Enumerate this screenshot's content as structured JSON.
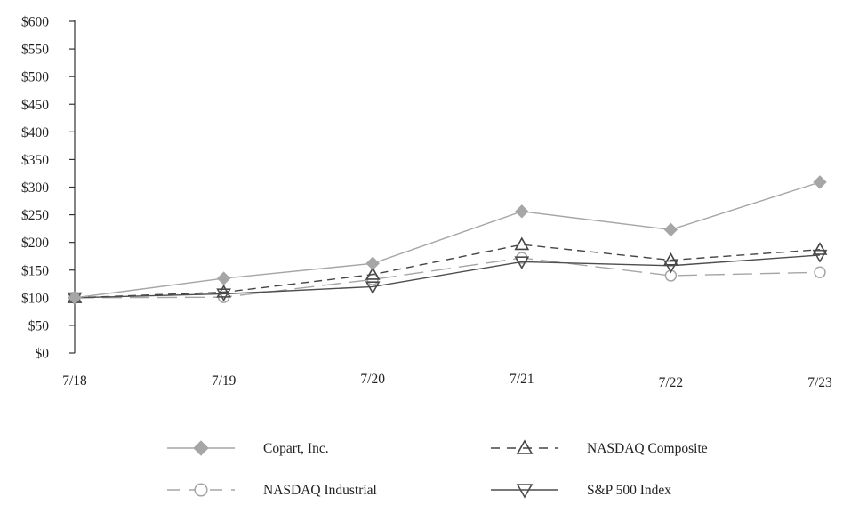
{
  "chart_data": {
    "type": "line",
    "categories": [
      "7/18",
      "7/19",
      "7/20",
      "7/21",
      "7/22",
      "7/23"
    ],
    "ylim": [
      0,
      600
    ],
    "yticks": [
      0,
      50,
      100,
      150,
      200,
      250,
      300,
      350,
      400,
      450,
      500,
      550,
      600
    ],
    "ytick_labels": [
      "$0",
      "$50",
      "$100",
      "$150",
      "$200",
      "$250",
      "$300",
      "$350",
      "$400",
      "$450",
      "$500",
      "$550",
      "$600"
    ],
    "grid": false,
    "legend_position": "bottom",
    "series": [
      {
        "name": "Copart, Inc.",
        "values": [
          100,
          135,
          162,
          256,
          223,
          309
        ],
        "color": "#a6a6a6",
        "dash": "solid",
        "marker": "diamond"
      },
      {
        "name": "NASDAQ Composite",
        "values": [
          100,
          110,
          142,
          196,
          168,
          187
        ],
        "color": "#444444",
        "dash": "dashed",
        "marker": "triangle-up"
      },
      {
        "name": "NASDAQ Industrial",
        "values": [
          100,
          101,
          133,
          172,
          140,
          146
        ],
        "color": "#a6a6a6",
        "dash": "longdash",
        "marker": "circle"
      },
      {
        "name": "S&P 500 Index",
        "values": [
          100,
          107,
          120,
          165,
          158,
          177
        ],
        "color": "#4d4d4d",
        "dash": "solid",
        "marker": "triangle-down"
      }
    ]
  }
}
